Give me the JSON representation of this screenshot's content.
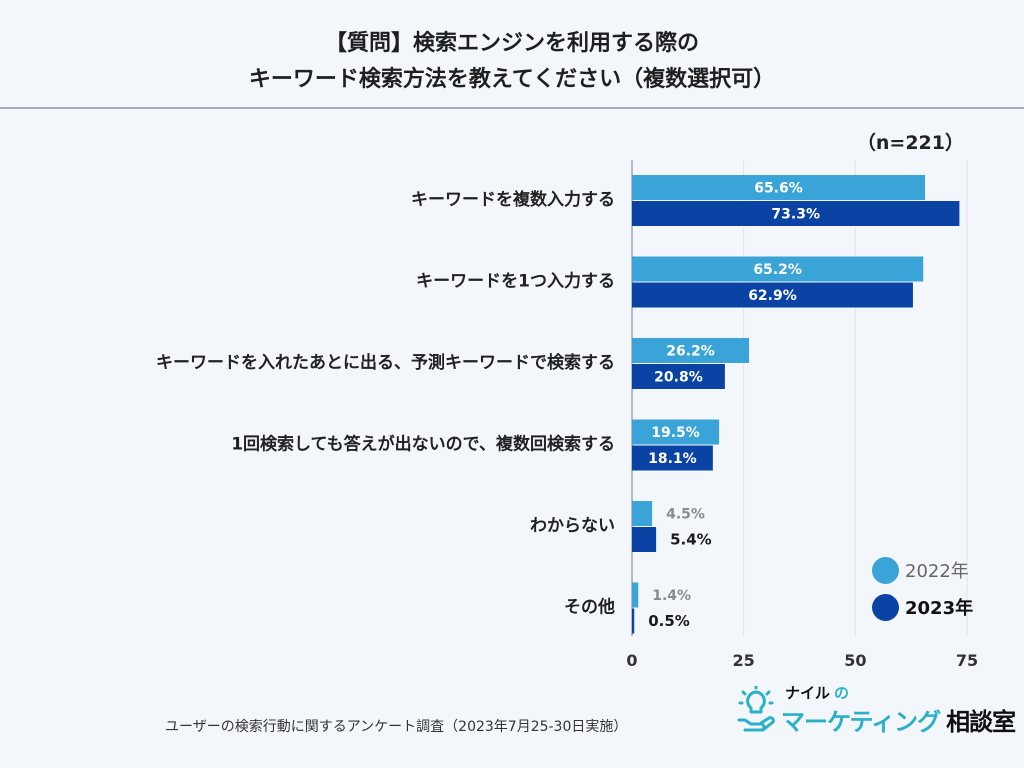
{
  "chart_data": {
    "type": "bar",
    "orientation": "horizontal",
    "title": [
      "【質問】検索エンジンを利用する際の",
      "キーワード検索方法を教えてください（複数選択可）"
    ],
    "sample_size": "（n=221）",
    "categories": [
      "キーワードを複数入力する",
      "キーワードを1つ入力する",
      "キーワードを入れたあとに出る、予測キーワードで検索する",
      "1回検索しても答えが出ないので、複数回検索する",
      "わからない",
      "その他"
    ],
    "series": [
      {
        "name": "2022年",
        "color": "#3aa4d8",
        "values": [
          65.6,
          65.2,
          26.2,
          19.5,
          4.5,
          1.4
        ],
        "labels": [
          "65.6%",
          "65.2%",
          "26.2%",
          "19.5%",
          "4.5%",
          "1.4%"
        ]
      },
      {
        "name": "2023年",
        "color": "#0b43a4",
        "values": [
          73.3,
          62.9,
          20.8,
          18.1,
          5.4,
          0.5
        ],
        "labels": [
          "73.3%",
          "62.9%",
          "20.8%",
          "18.1%",
          "5.4%",
          "0.5%"
        ]
      }
    ],
    "xlim": [
      0,
      75
    ],
    "xticks": [
      0,
      25,
      50,
      75
    ],
    "xtick_labels": [
      "0",
      "25",
      "50",
      "75"
    ],
    "grid": true,
    "legend_position": "bottom-right"
  },
  "footnote": "ユーザーの検索行動に関するアンケート調査（2023年7月25-30日実施）",
  "logo": {
    "small": "ナイル",
    "small_no": "の",
    "main_katakana": "マーケティング",
    "main_kanji": "相談室",
    "icon": "lightbulb-hand-icon",
    "accent_color": "#2ab0c9"
  }
}
